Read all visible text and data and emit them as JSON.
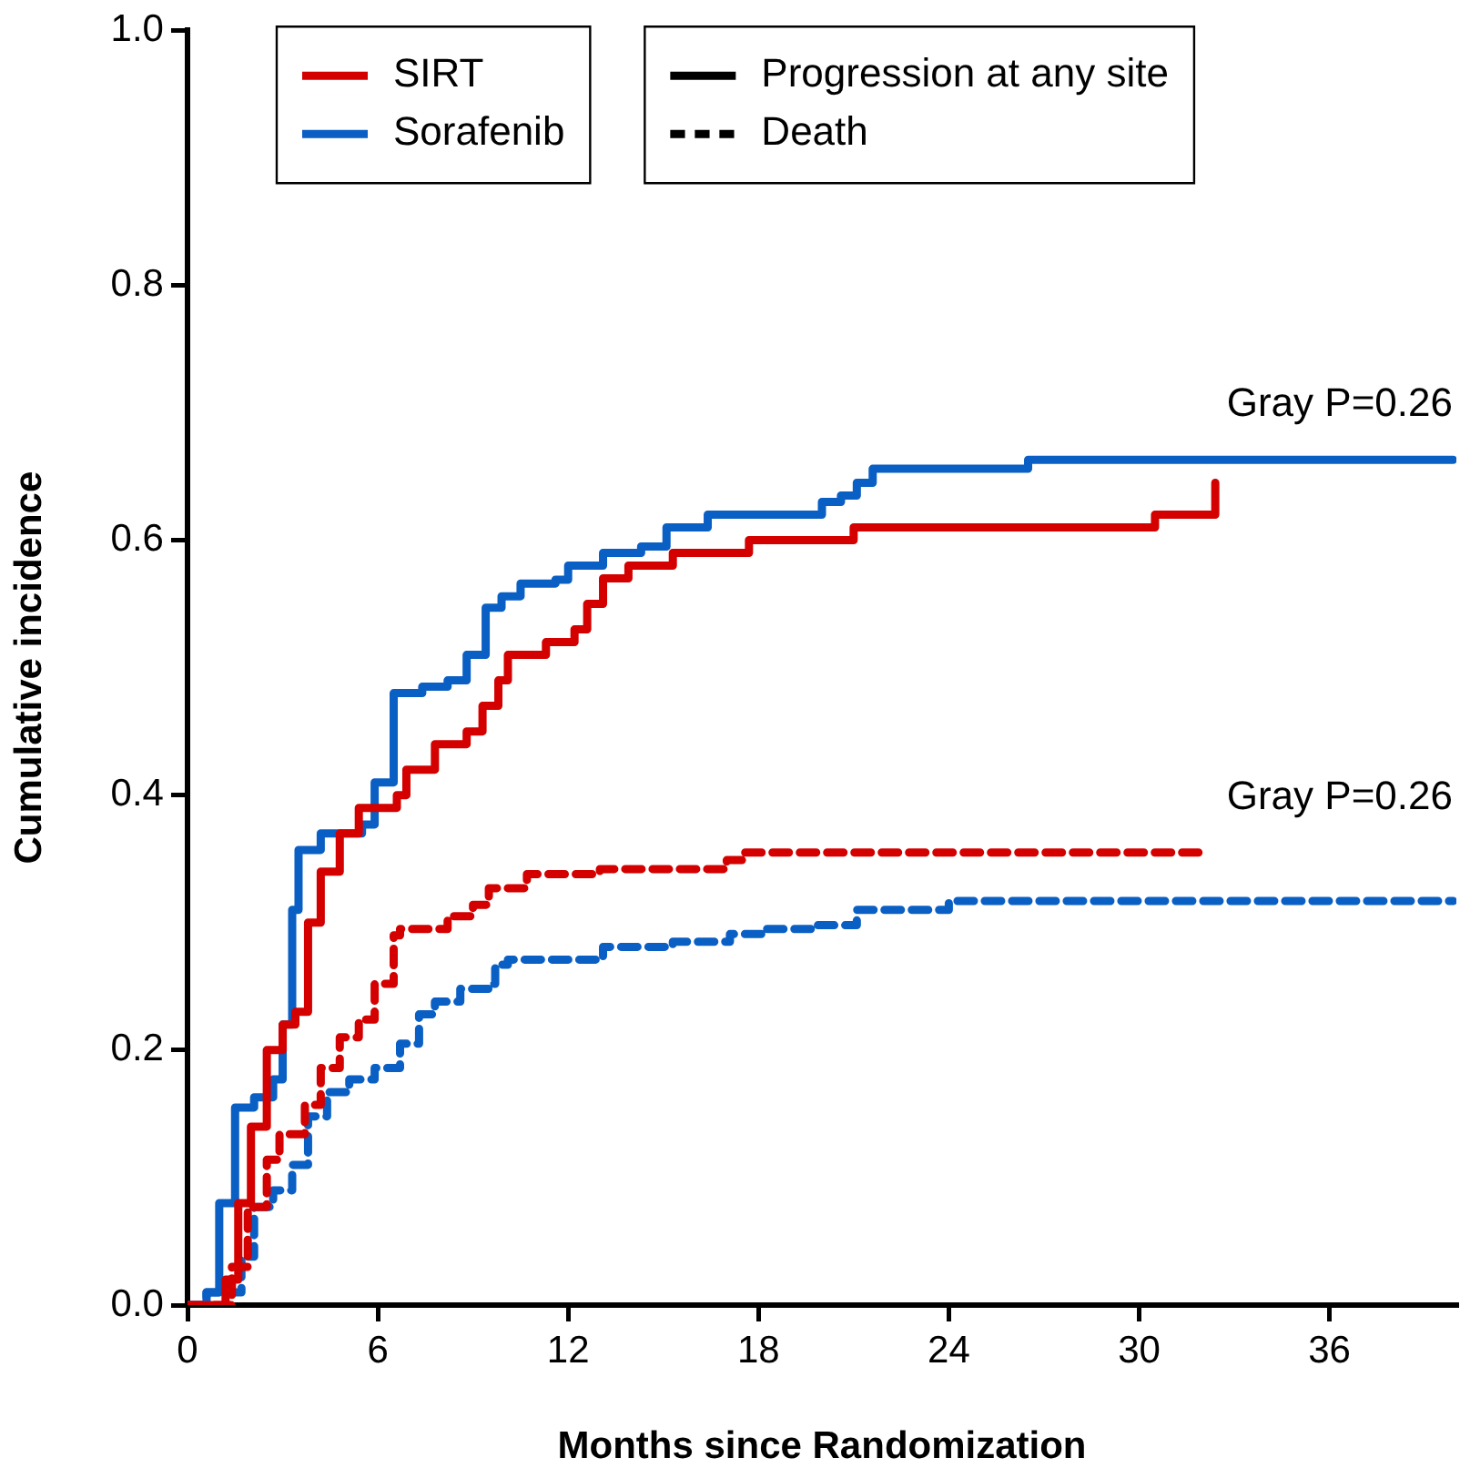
{
  "chart_data": {
    "type": "step",
    "xlabel": "Months since Randomization",
    "ylabel": "Cumulative incidence",
    "xlim": [
      0,
      40
    ],
    "xticks": [
      0,
      6,
      12,
      18,
      24,
      30,
      36
    ],
    "ylim": [
      0,
      1
    ],
    "yticks": [
      {
        "value": 0,
        "label": "0.0"
      },
      0.2,
      0.4,
      0.6,
      0.8,
      {
        "value": 1,
        "label": "1.0"
      }
    ],
    "grid": false,
    "legend": "top",
    "marker": "none",
    "annotations": [
      "Progression at any site",
      "Death",
      "Gray P=0.26",
      "Gray P=0.26"
    ],
    "series": [
      {
        "name": "SIRT",
        "color": "#d40000",
        "line_style": "solid",
        "x": [
          0,
          0.8,
          1.2,
          1.6,
          2.0,
          2.5,
          3.0,
          3.4,
          3.8,
          4.2,
          4.8,
          5.4,
          6.6,
          6.9,
          7.8,
          8.8,
          9.3,
          9.8,
          10.1,
          11.3,
          12.2,
          12.6,
          13.1,
          13.9,
          15.3,
          17.7,
          21.0,
          30.5,
          32.4
        ],
        "values": [
          0,
          0,
          0.02,
          0.08,
          0.14,
          0.2,
          0.22,
          0.23,
          0.3,
          0.34,
          0.37,
          0.39,
          0.4,
          0.42,
          0.44,
          0.45,
          0.47,
          0.49,
          0.51,
          0.52,
          0.53,
          0.55,
          0.57,
          0.58,
          0.59,
          0.6,
          0.61,
          0.62,
          0.645
        ]
      },
      {
        "name": "Sorafenib",
        "color": "#0a5fc4",
        "line_style": "solid",
        "x": [
          0,
          0.6,
          1.0,
          1.5,
          2.1,
          2.7,
          3.0,
          3.3,
          3.5,
          4.2,
          5.5,
          5.9,
          6.5,
          7.4,
          8.2,
          8.8,
          9.4,
          9.9,
          10.5,
          11.6,
          12.0,
          13.1,
          14.3,
          15.1,
          16.4,
          20.0,
          20.6,
          21.1,
          21.6,
          26.5,
          39.9
        ],
        "values": [
          0,
          0.01,
          0.08,
          0.155,
          0.163,
          0.177,
          0.22,
          0.31,
          0.357,
          0.37,
          0.377,
          0.41,
          0.48,
          0.485,
          0.49,
          0.51,
          0.547,
          0.556,
          0.566,
          0.569,
          0.58,
          0.59,
          0.595,
          0.61,
          0.62,
          0.63,
          0.635,
          0.645,
          0.656,
          0.663,
          0.663
        ]
      },
      {
        "color": "#d40000",
        "line_style": "dashed",
        "x": [
          0,
          1.0,
          1.4,
          1.9,
          2.5,
          2.9,
          3.7,
          4.2,
          4.8,
          5.4,
          5.9,
          6.5,
          6.7,
          8.2,
          9.0,
          9.5,
          10.7,
          13.0,
          17.0,
          17.5,
          32.1
        ],
        "values": [
          0,
          0,
          0.03,
          0.077,
          0.114,
          0.134,
          0.157,
          0.186,
          0.21,
          0.224,
          0.252,
          0.29,
          0.295,
          0.305,
          0.314,
          0.327,
          0.338,
          0.342,
          0.349,
          0.355,
          0.355
        ]
      },
      {
        "color": "#0a5fc4",
        "line_style": "dashed",
        "x": [
          0,
          0.6,
          1.7,
          2.1,
          2.7,
          3.3,
          3.8,
          4.4,
          5.1,
          5.9,
          6.7,
          7.3,
          7.8,
          8.6,
          9.5,
          9.7,
          10.1,
          13.1,
          15.3,
          17.1,
          18.1,
          19.7,
          21.1,
          24.0,
          39.9
        ],
        "values": [
          0,
          0.01,
          0.038,
          0.077,
          0.09,
          0.11,
          0.148,
          0.167,
          0.177,
          0.186,
          0.205,
          0.228,
          0.238,
          0.248,
          0.252,
          0.267,
          0.271,
          0.281,
          0.285,
          0.291,
          0.295,
          0.298,
          0.31,
          0.317,
          0.317
        ]
      }
    ]
  }
}
